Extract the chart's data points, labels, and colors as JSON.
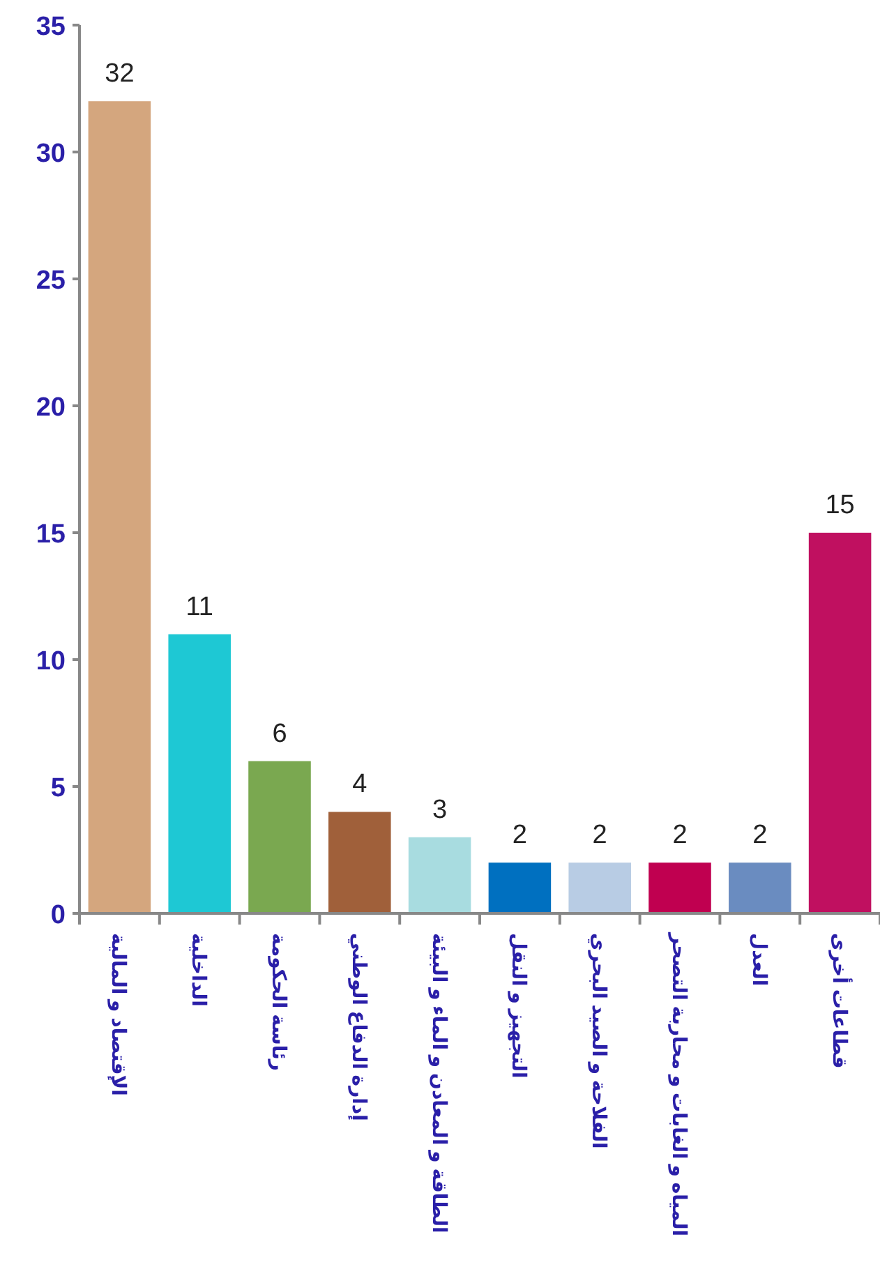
{
  "chart_data": {
    "type": "bar",
    "categories": [
      "الإقتصاد و المالية",
      "الداخلية",
      "رئاسة الحكومة",
      "إدارة الدفاع الوطني",
      "الطاقة و المعادن و الماء و البيئة",
      "التجهيز و النقل",
      "الفلاحة و الصيد البحري",
      "المياه و الغابات و محاربة التصحر",
      "العدل",
      "قطاعات أخرى"
    ],
    "values": [
      32,
      11,
      6,
      4,
      3,
      2,
      2,
      2,
      2,
      15
    ],
    "colors": [
      "#d4a67e",
      "#1ec8d4",
      "#7aa850",
      "#a0603a",
      "#a8dce0",
      "#0070c0",
      "#b8cce4",
      "#c00050",
      "#6a8cc0",
      "#c01060"
    ],
    "ylim": [
      0,
      35
    ],
    "yticks": [
      0,
      5,
      10,
      15,
      20,
      25,
      30,
      35
    ],
    "data_labels": true,
    "grid": false
  }
}
